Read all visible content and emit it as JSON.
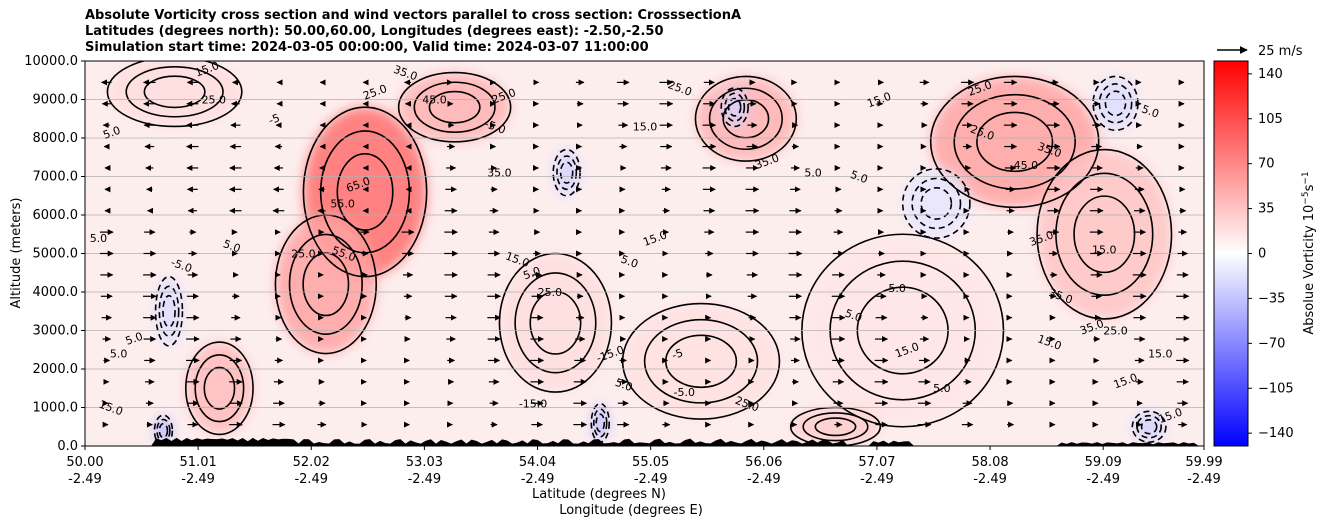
{
  "chart_data": {
    "type": "heatmap",
    "title_lines": [
      "Absolute Vorticity cross section and wind vectors parallel to cross section: CrosssectionA",
      "Latitudes (degrees north): 50.00,60.00, Longitudes (degrees east): -2.50,-2.50",
      "Simulation start time: 2024-03-05 00:00:00, Valid time: 2024-03-07 11:00:00"
    ],
    "ylabel": "Altitude (meters)",
    "xlabel_lines": [
      "Latitude (degrees N)",
      "Longitude (degrees E)"
    ],
    "ylim": [
      0,
      10000
    ],
    "y_ticks": [
      {
        "value": 0,
        "label": "0.0"
      },
      {
        "value": 1000,
        "label": "1000.0"
      },
      {
        "value": 2000,
        "label": "2000.0"
      },
      {
        "value": 3000,
        "label": "3000.0"
      },
      {
        "value": 4000,
        "label": "4000.0"
      },
      {
        "value": 5000,
        "label": "5000.0"
      },
      {
        "value": 6000,
        "label": "6000.0"
      },
      {
        "value": 7000,
        "label": "7000.0"
      },
      {
        "value": 8000,
        "label": "8000.0"
      },
      {
        "value": 9000,
        "label": "9000.0"
      },
      {
        "value": 10000,
        "label": "10000.0"
      }
    ],
    "xlim": [
      50.0,
      59.99
    ],
    "x_ticks": [
      {
        "lat": 50.0,
        "lat_label": "50.00",
        "lon_label": "-2.49"
      },
      {
        "lat": 51.01,
        "lat_label": "51.01",
        "lon_label": "-2.49"
      },
      {
        "lat": 52.02,
        "lat_label": "52.02",
        "lon_label": "-2.49"
      },
      {
        "lat": 53.03,
        "lat_label": "53.03",
        "lon_label": "-2.49"
      },
      {
        "lat": 54.04,
        "lat_label": "54.04",
        "lon_label": "-2.49"
      },
      {
        "lat": 55.05,
        "lat_label": "55.05",
        "lon_label": "-2.49"
      },
      {
        "lat": 56.06,
        "lat_label": "56.06",
        "lon_label": "-2.49"
      },
      {
        "lat": 57.07,
        "lat_label": "57.07",
        "lon_label": "-2.49"
      },
      {
        "lat": 58.08,
        "lat_label": "58.08",
        "lon_label": "-2.49"
      },
      {
        "lat": 59.09,
        "lat_label": "59.09",
        "lon_label": "-2.49"
      },
      {
        "lat": 59.99,
        "lat_label": "59.99",
        "lon_label": "-2.49"
      }
    ],
    "grid": "horizontal",
    "colorbar": {
      "label": "Absolue Vorticity 10$^{-5}$s$^{-1}$",
      "label_text": "Absolue Vorticity 10",
      "label_sup1": "−5",
      "label_mid": "s",
      "label_sup2": "−1",
      "range": [
        -150,
        150
      ],
      "cmap": "bwr",
      "ticks": [
        {
          "value": 140,
          "label": "140"
        },
        {
          "value": 105,
          "label": "105"
        },
        {
          "value": 70,
          "label": "70"
        },
        {
          "value": 35,
          "label": "35"
        },
        {
          "value": 0,
          "label": "0"
        },
        {
          "value": -35,
          "label": "−35"
        },
        {
          "value": -70,
          "label": "−70"
        },
        {
          "value": -105,
          "label": "−105"
        },
        {
          "value": -140,
          "label": "−140"
        }
      ],
      "colors": {
        "min": "#0000ff",
        "mid": "#ffffff",
        "max": "#ff0000"
      }
    },
    "quiver_key": {
      "label": "25 m/s",
      "speed": 25
    },
    "vorticity_blobs": [
      {
        "lat": 52.5,
        "alt": 6600,
        "value": 85,
        "rlat": 0.55,
        "ralt": 2200
      },
      {
        "lat": 52.15,
        "alt": 4200,
        "value": 55,
        "rlat": 0.45,
        "ralt": 1800
      },
      {
        "lat": 51.2,
        "alt": 1500,
        "value": 40,
        "rlat": 0.3,
        "ralt": 1200
      },
      {
        "lat": 53.3,
        "alt": 8800,
        "value": 45,
        "rlat": 0.5,
        "ralt": 900
      },
      {
        "lat": 55.9,
        "alt": 8500,
        "value": 45,
        "rlat": 0.45,
        "ralt": 1100
      },
      {
        "lat": 58.3,
        "alt": 7900,
        "value": 55,
        "rlat": 0.75,
        "ralt": 1700
      },
      {
        "lat": 59.1,
        "alt": 5500,
        "value": 35,
        "rlat": 0.6,
        "ralt": 2200
      },
      {
        "lat": 54.2,
        "alt": 3200,
        "value": 20,
        "rlat": 0.5,
        "ralt": 1800
      },
      {
        "lat": 55.5,
        "alt": 2200,
        "value": 18,
        "rlat": 0.7,
        "ralt": 1500
      },
      {
        "lat": 57.3,
        "alt": 3000,
        "value": 15,
        "rlat": 0.9,
        "ralt": 2500
      },
      {
        "lat": 50.8,
        "alt": 9200,
        "value": 20,
        "rlat": 0.6,
        "ralt": 900
      },
      {
        "lat": 56.7,
        "alt": 500,
        "value": 30,
        "rlat": 0.4,
        "ralt": 500
      },
      {
        "lat": 54.3,
        "alt": 7100,
        "value": -25,
        "rlat": 0.12,
        "ralt": 600
      },
      {
        "lat": 50.75,
        "alt": 3500,
        "value": -20,
        "rlat": 0.12,
        "ralt": 900
      },
      {
        "lat": 57.6,
        "alt": 6300,
        "value": -15,
        "rlat": 0.3,
        "ralt": 900
      },
      {
        "lat": 59.2,
        "alt": 8900,
        "value": -20,
        "rlat": 0.2,
        "ralt": 700
      },
      {
        "lat": 55.8,
        "alt": 8800,
        "value": -25,
        "rlat": 0.12,
        "ralt": 500
      },
      {
        "lat": 50.7,
        "alt": 400,
        "value": -40,
        "rlat": 0.08,
        "ralt": 400
      },
      {
        "lat": 54.6,
        "alt": 600,
        "value": -35,
        "rlat": 0.08,
        "ralt": 500
      },
      {
        "lat": 59.5,
        "alt": 500,
        "value": -25,
        "rlat": 0.15,
        "ralt": 400
      }
    ],
    "contour_labels": [
      {
        "lat": 50.25,
        "alt": 8050,
        "text": "5.0"
      },
      {
        "lat": 50.12,
        "alt": 5300,
        "text": "5.0"
      },
      {
        "lat": 50.22,
        "alt": 900,
        "text": "15.0"
      },
      {
        "lat": 50.45,
        "alt": 2700,
        "text": "5.0"
      },
      {
        "lat": 50.3,
        "alt": 2300,
        "text": "5.0"
      },
      {
        "lat": 50.85,
        "alt": 4600,
        "text": "-5.0"
      },
      {
        "lat": 51.1,
        "alt": 9700,
        "text": "15.0"
      },
      {
        "lat": 51.15,
        "alt": 8900,
        "text": "25.0"
      },
      {
        "lat": 51.3,
        "alt": 5100,
        "text": "5.0"
      },
      {
        "lat": 51.7,
        "alt": 8400,
        "text": "-5"
      },
      {
        "lat": 51.95,
        "alt": 4900,
        "text": "25.0"
      },
      {
        "lat": 52.3,
        "alt": 4900,
        "text": "55.0"
      },
      {
        "lat": 52.45,
        "alt": 6700,
        "text": "65.0"
      },
      {
        "lat": 52.3,
        "alt": 6200,
        "text": "55.0"
      },
      {
        "lat": 52.85,
        "alt": 9600,
        "text": "35.0"
      },
      {
        "lat": 52.6,
        "alt": 9100,
        "text": "25.0"
      },
      {
        "lat": 53.12,
        "alt": 8900,
        "text": "45.0"
      },
      {
        "lat": 53.65,
        "alt": 8200,
        "text": "-5.0"
      },
      {
        "lat": 53.75,
        "alt": 9000,
        "text": "25.0"
      },
      {
        "lat": 53.7,
        "alt": 7000,
        "text": "35.0"
      },
      {
        "lat": 53.85,
        "alt": 4750,
        "text": "15.0"
      },
      {
        "lat": 54.0,
        "alt": 4400,
        "text": "5.0"
      },
      {
        "lat": 54.15,
        "alt": 3900,
        "text": "25.0"
      },
      {
        "lat": 54.85,
        "alt": 4700,
        "text": "5.0"
      },
      {
        "lat": 54.7,
        "alt": 2300,
        "text": "-15.0"
      },
      {
        "lat": 54.0,
        "alt": 1000,
        "text": "-15.0"
      },
      {
        "lat": 54.8,
        "alt": 1500,
        "text": "5.0"
      },
      {
        "lat": 55.3,
        "alt": 2300,
        "text": "-5"
      },
      {
        "lat": 55.0,
        "alt": 8200,
        "text": "15.0"
      },
      {
        "lat": 55.3,
        "alt": 9200,
        "text": "25.0"
      },
      {
        "lat": 55.1,
        "alt": 5300,
        "text": "15.0"
      },
      {
        "lat": 55.35,
        "alt": 1300,
        "text": "-5.0"
      },
      {
        "lat": 55.9,
        "alt": 1000,
        "text": "25.0"
      },
      {
        "lat": 56.1,
        "alt": 7300,
        "text": "35.0"
      },
      {
        "lat": 56.5,
        "alt": 7000,
        "text": "5.0"
      },
      {
        "lat": 56.9,
        "alt": 6900,
        "text": "5.0"
      },
      {
        "lat": 57.1,
        "alt": 8900,
        "text": "15.0"
      },
      {
        "lat": 57.25,
        "alt": 4000,
        "text": "5.0"
      },
      {
        "lat": 56.85,
        "alt": 3300,
        "text": "5.0"
      },
      {
        "lat": 57.35,
        "alt": 2400,
        "text": "15.0"
      },
      {
        "lat": 57.65,
        "alt": 1400,
        "text": "5.0"
      },
      {
        "lat": 58.0,
        "alt": 8050,
        "text": "25.0"
      },
      {
        "lat": 58.0,
        "alt": 9200,
        "text": "25.0"
      },
      {
        "lat": 58.4,
        "alt": 7200,
        "text": "45.0"
      },
      {
        "lat": 58.6,
        "alt": 7600,
        "text": "35.0"
      },
      {
        "lat": 58.55,
        "alt": 5300,
        "text": "35.0"
      },
      {
        "lat": 59.1,
        "alt": 5000,
        "text": "15.0"
      },
      {
        "lat": 58.7,
        "alt": 3800,
        "text": "35.0"
      },
      {
        "lat": 59.0,
        "alt": 3000,
        "text": "35.0"
      },
      {
        "lat": 59.2,
        "alt": 2900,
        "text": "25.0"
      },
      {
        "lat": 58.6,
        "alt": 2600,
        "text": "15.0"
      },
      {
        "lat": 59.3,
        "alt": 1600,
        "text": "15.0"
      },
      {
        "lat": 59.6,
        "alt": 2300,
        "text": "15.0"
      },
      {
        "lat": 59.5,
        "alt": 8600,
        "text": "5.0"
      },
      {
        "lat": 59.7,
        "alt": 700,
        "text": "15.0"
      }
    ]
  }
}
